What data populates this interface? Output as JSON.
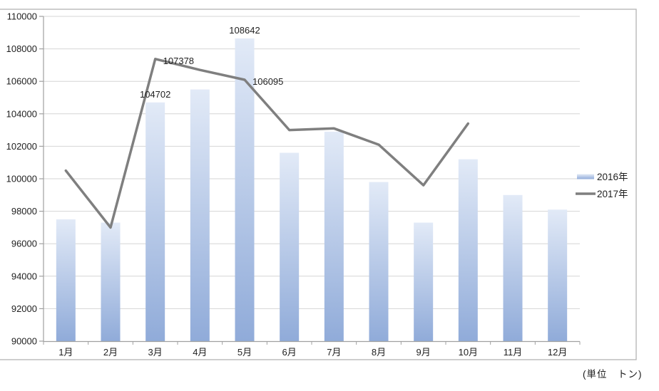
{
  "chart_data": {
    "type": "bar",
    "subtype": "bar+line combo",
    "categories": [
      "1月",
      "2月",
      "3月",
      "4月",
      "5月",
      "6月",
      "7月",
      "8月",
      "9月",
      "10月",
      "11月",
      "12月"
    ],
    "series": [
      {
        "name": "2016年",
        "type": "bar",
        "values": [
          97500,
          97300,
          104702,
          105500,
          108642,
          101600,
          102900,
          99800,
          97300,
          101200,
          99000,
          98100
        ]
      },
      {
        "name": "2017年",
        "type": "line",
        "values": [
          100500,
          97000,
          107378,
          106700,
          106095,
          103000,
          103100,
          102100,
          99600,
          103400,
          null,
          null
        ]
      }
    ],
    "title": "",
    "xlabel": "",
    "ylabel": "",
    "ylim": [
      90000,
      110000
    ],
    "ytick_interval": 2000,
    "grid": true,
    "legend_position": "right",
    "annotations": [
      {
        "series": "2016年",
        "category": "3月",
        "text": "104702",
        "placement": "above"
      },
      {
        "series": "2017年",
        "category": "3月",
        "text": "107378",
        "placement": "right"
      },
      {
        "series": "2016年",
        "category": "5月",
        "text": "108642",
        "placement": "above"
      },
      {
        "series": "2017年",
        "category": "5月",
        "text": "106095",
        "placement": "right"
      }
    ],
    "colors": {
      "bar_top": "#e2eaf7",
      "bar_bottom": "#90abd9",
      "line": "#7f7f7f",
      "grid": "#d6d6d6",
      "axis": "#a0a0a0",
      "text": "#1f1f1f",
      "border": "#b3b3b3"
    }
  },
  "legend": {
    "items": [
      {
        "label": "2016年",
        "swatch": "bar-swatch"
      },
      {
        "label": "2017年",
        "swatch": "line-swatch"
      }
    ]
  },
  "footer": {
    "unit_label": "(単位　トン)"
  }
}
